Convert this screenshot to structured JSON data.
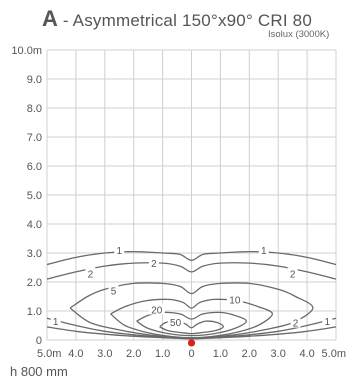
{
  "header": {
    "title_letter": "A",
    "title_text": " - Asymmetrical 150°x90° CRI 80",
    "subtitle": "Isolux (3000K)"
  },
  "footnote": "h 800 mm",
  "colors": {
    "grid": "#d0d0d0",
    "contour": "#6a6a6a",
    "marker": "#e0221e"
  },
  "chart_data": {
    "type": "contour",
    "title": "Asymmetrical 150°x90° CRI 80",
    "subtitle": "Isolux (3000K)",
    "xlim": [
      -5,
      5
    ],
    "ylim": [
      0,
      10
    ],
    "x_ticks": [
      "5.0m",
      "4.0",
      "3.0",
      "2.0",
      "1.0",
      "0",
      "1.0",
      "2.0",
      "3.0",
      "4.0",
      "5.0m"
    ],
    "y_ticks": [
      "0",
      "1.0",
      "2.0",
      "3.0",
      "4.0",
      "5.0",
      "6.0",
      "7.0",
      "8.0",
      "9.0",
      "10.0m"
    ],
    "mounting_height": "h 800 mm",
    "grid": true,
    "source_point": [
      0,
      -0.1
    ],
    "contours": [
      {
        "label": "1",
        "label_positions": [
          [
            -2.5,
            3.1
          ],
          [
            2.5,
            3.1
          ],
          [
            -4.7,
            0.65
          ],
          [
            4.7,
            0.65
          ]
        ],
        "points": [
          [
            -5,
            2.6
          ],
          [
            -4,
            2.85
          ],
          [
            -3,
            3.0
          ],
          [
            -2,
            3.05
          ],
          [
            -1,
            3.0
          ],
          [
            -0.4,
            2.95
          ],
          [
            0,
            2.75
          ],
          [
            0.4,
            2.95
          ],
          [
            1,
            3.0
          ],
          [
            2,
            3.05
          ],
          [
            3,
            3.0
          ],
          [
            4,
            2.85
          ],
          [
            5,
            2.6
          ]
        ],
        "lower": [
          [
            -5,
            0.75
          ],
          [
            -4,
            0.5
          ],
          [
            -3,
            0.3
          ],
          [
            -2,
            0.18
          ],
          [
            -1,
            0.1
          ],
          [
            0,
            0.05
          ],
          [
            1,
            0.1
          ],
          [
            2,
            0.18
          ],
          [
            3,
            0.3
          ],
          [
            4,
            0.5
          ],
          [
            5,
            0.75
          ]
        ]
      },
      {
        "label": "2",
        "label_positions": [
          [
            -3.5,
            2.3
          ],
          [
            -1.3,
            2.65
          ],
          [
            3.5,
            2.3
          ],
          [
            3.6,
            0.6
          ]
        ],
        "points": [
          [
            -5,
            2.1
          ],
          [
            -4,
            2.35
          ],
          [
            -3,
            2.55
          ],
          [
            -2,
            2.65
          ],
          [
            -1,
            2.65
          ],
          [
            -0.4,
            2.55
          ],
          [
            0,
            2.35
          ],
          [
            0.4,
            2.55
          ],
          [
            1,
            2.65
          ],
          [
            2,
            2.65
          ],
          [
            3,
            2.55
          ],
          [
            4,
            2.35
          ],
          [
            5,
            2.1
          ]
        ],
        "lower": [
          [
            -5,
            0.45
          ],
          [
            -4,
            0.3
          ],
          [
            -3,
            0.2
          ],
          [
            -2,
            0.13
          ],
          [
            -1,
            0.08
          ],
          [
            0,
            0.04
          ],
          [
            1,
            0.08
          ],
          [
            2,
            0.13
          ],
          [
            3,
            0.2
          ],
          [
            4,
            0.3
          ],
          [
            5,
            0.45
          ]
        ]
      },
      {
        "label": "5",
        "label_positions": [
          [
            -2.7,
            1.7
          ]
        ],
        "points": [
          [
            -4.2,
            1.1
          ],
          [
            -3.6,
            1.5
          ],
          [
            -3,
            1.75
          ],
          [
            -2,
            1.95
          ],
          [
            -1,
            1.95
          ],
          [
            -0.4,
            1.85
          ],
          [
            0,
            1.6
          ],
          [
            0.4,
            1.85
          ],
          [
            1,
            1.95
          ],
          [
            2,
            1.95
          ],
          [
            3,
            1.75
          ],
          [
            3.6,
            1.5
          ],
          [
            4.2,
            1.1
          ],
          [
            3.5,
            0.6
          ],
          [
            2.5,
            0.35
          ],
          [
            1.5,
            0.18
          ],
          [
            0.5,
            0.08
          ],
          [
            0,
            0.05
          ],
          [
            -0.5,
            0.08
          ],
          [
            -1.5,
            0.18
          ],
          [
            -2.5,
            0.35
          ],
          [
            -3.5,
            0.6
          ],
          [
            -4.2,
            1.1
          ]
        ]
      },
      {
        "label": "10",
        "label_positions": [
          [
            1.5,
            1.4
          ]
        ],
        "points": [
          [
            -2.8,
            0.9
          ],
          [
            -2.3,
            1.15
          ],
          [
            -1.6,
            1.35
          ],
          [
            -0.8,
            1.4
          ],
          [
            -0.3,
            1.3
          ],
          [
            0,
            1.1
          ],
          [
            0.3,
            1.3
          ],
          [
            0.8,
            1.4
          ],
          [
            1.6,
            1.35
          ],
          [
            2.3,
            1.15
          ],
          [
            2.8,
            0.9
          ],
          [
            2.3,
            0.5
          ],
          [
            1.5,
            0.25
          ],
          [
            0.7,
            0.12
          ],
          [
            0,
            0.08
          ],
          [
            -0.7,
            0.12
          ],
          [
            -1.5,
            0.25
          ],
          [
            -2.3,
            0.5
          ],
          [
            -2.8,
            0.9
          ]
        ]
      },
      {
        "label": "20",
        "label_positions": [
          [
            -1.2,
            1.05
          ]
        ],
        "points": [
          [
            -1.9,
            0.65
          ],
          [
            -1.5,
            0.85
          ],
          [
            -1.0,
            0.95
          ],
          [
            -0.4,
            0.9
          ],
          [
            0,
            0.72
          ],
          [
            0.4,
            0.9
          ],
          [
            1.0,
            0.95
          ],
          [
            1.5,
            0.85
          ],
          [
            1.9,
            0.65
          ],
          [
            1.5,
            0.4
          ],
          [
            0.8,
            0.22
          ],
          [
            0,
            0.15
          ],
          [
            -0.8,
            0.22
          ],
          [
            -1.5,
            0.4
          ],
          [
            -1.9,
            0.65
          ]
        ]
      },
      {
        "label": "50",
        "label_positions": [
          [
            -0.55,
            0.62
          ]
        ],
        "points": [
          [
            -1.1,
            0.45
          ],
          [
            -0.9,
            0.6
          ],
          [
            -0.5,
            0.65
          ],
          [
            -0.2,
            0.55
          ],
          [
            0,
            0.42
          ],
          [
            0.2,
            0.55
          ],
          [
            0.5,
            0.65
          ],
          [
            0.9,
            0.6
          ],
          [
            1.1,
            0.45
          ],
          [
            0.8,
            0.32
          ],
          [
            0.3,
            0.25
          ],
          [
            0,
            0.22
          ],
          [
            -0.3,
            0.25
          ],
          [
            -0.8,
            0.32
          ],
          [
            -1.1,
            0.45
          ]
        ]
      }
    ]
  }
}
